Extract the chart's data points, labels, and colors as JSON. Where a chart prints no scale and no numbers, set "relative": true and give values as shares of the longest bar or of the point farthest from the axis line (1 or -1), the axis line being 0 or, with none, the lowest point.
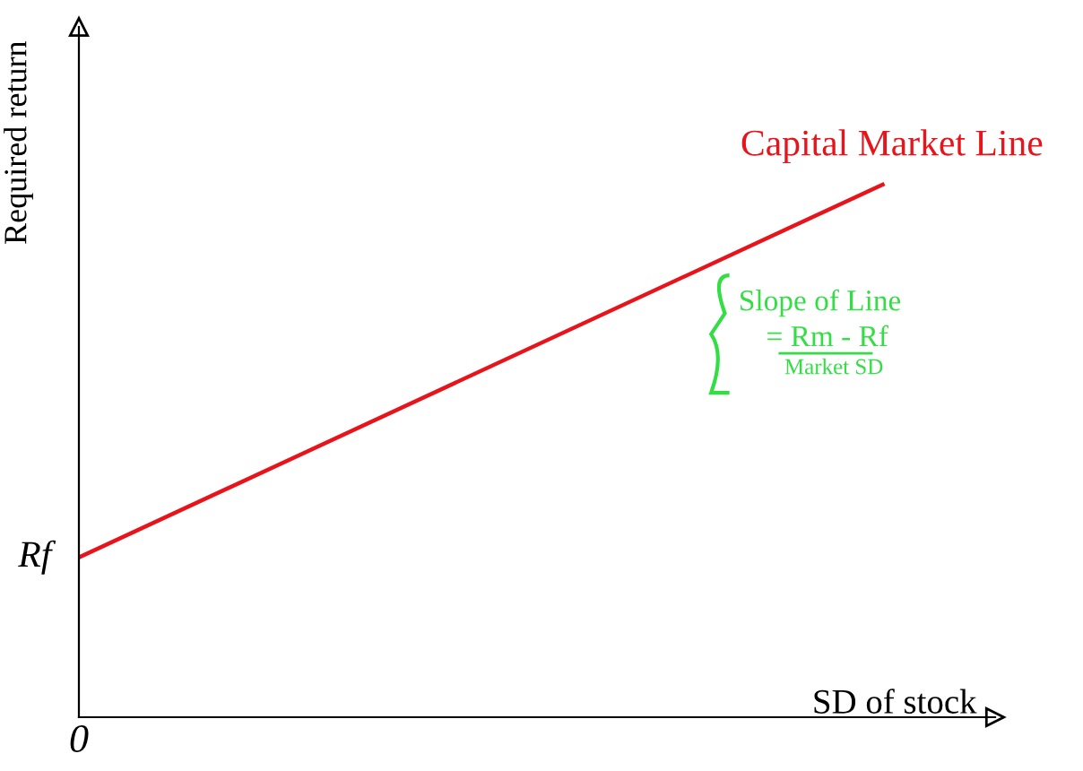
{
  "chart_data": {
    "type": "line",
    "relative": true,
    "xlabel": "SD of stock",
    "ylabel": "Required return",
    "categories": [
      null,
      null
    ],
    "series": [
      {
        "name": "Capital Market Line",
        "color": "#e8141c",
        "values": [
          0.3,
          1
        ]
      }
    ],
    "annotations": [
      "0",
      "Rf",
      "Slope of Line",
      "= Rm - Rf",
      "Market SD"
    ],
    "legend": false,
    "marker": "none",
    "line_style": "solid"
  }
}
